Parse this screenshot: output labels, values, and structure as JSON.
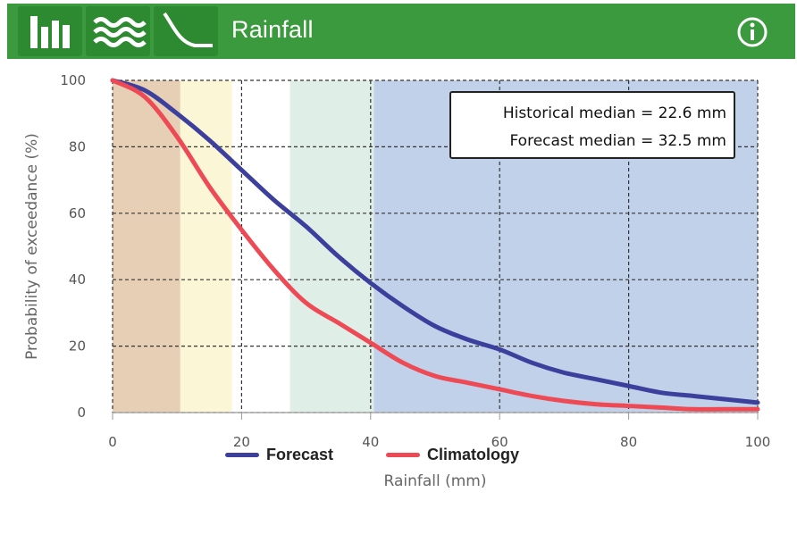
{
  "header": {
    "title": "Rainfall",
    "buttons": [
      {
        "icon": "bar-chart-icon"
      },
      {
        "icon": "waves-icon"
      },
      {
        "icon": "exceedance-curve-icon"
      }
    ],
    "info_icon": "info-icon",
    "background": "#3a9a3d"
  },
  "medians": {
    "historical": "Historical median = 22.6 mm",
    "forecast": "Forecast median = 32.5 mm"
  },
  "chart_data": {
    "type": "line",
    "xlabel": "Rainfall (mm)",
    "ylabel": "Probability of exceedance (%)",
    "xlim": [
      0,
      100
    ],
    "ylim": [
      0,
      100
    ],
    "xticks": [
      0,
      20,
      40,
      60,
      80,
      100
    ],
    "yticks": [
      0,
      20,
      40,
      60,
      80,
      100
    ],
    "grid": true,
    "legend_position": "bottom-center",
    "bands": [
      {
        "from": 0,
        "to": 10.5,
        "color": "#e6cfb5"
      },
      {
        "from": 10.5,
        "to": 18.5,
        "color": "#fbf6d6"
      },
      {
        "from": 18.5,
        "to": 27.5,
        "color": "#ffffff"
      },
      {
        "from": 27.5,
        "to": 40.5,
        "color": "#dfeee6"
      },
      {
        "from": 40.5,
        "to": 100,
        "color": "#c1d1e9"
      }
    ],
    "series": [
      {
        "name": "Forecast",
        "color": "#3c3f9c",
        "x": [
          0,
          5,
          10,
          15,
          20,
          25,
          30,
          35,
          40,
          45,
          50,
          55,
          60,
          65,
          70,
          75,
          80,
          85,
          90,
          95,
          100
        ],
        "y": [
          100,
          97,
          90,
          82,
          73,
          64,
          56,
          47,
          39,
          32,
          26,
          22,
          19,
          15,
          12,
          10,
          8,
          6,
          5,
          4,
          3
        ]
      },
      {
        "name": "Climatology",
        "color": "#ee4a55",
        "x": [
          0,
          5,
          10,
          15,
          20,
          25,
          30,
          35,
          40,
          45,
          50,
          55,
          60,
          65,
          70,
          75,
          80,
          85,
          90,
          95,
          100
        ],
        "y": [
          100,
          95,
          83,
          68,
          55,
          43,
          33,
          27,
          21,
          15,
          11,
          9,
          7,
          5,
          3.5,
          2.5,
          2,
          1.5,
          1,
          1,
          1
        ]
      }
    ]
  }
}
